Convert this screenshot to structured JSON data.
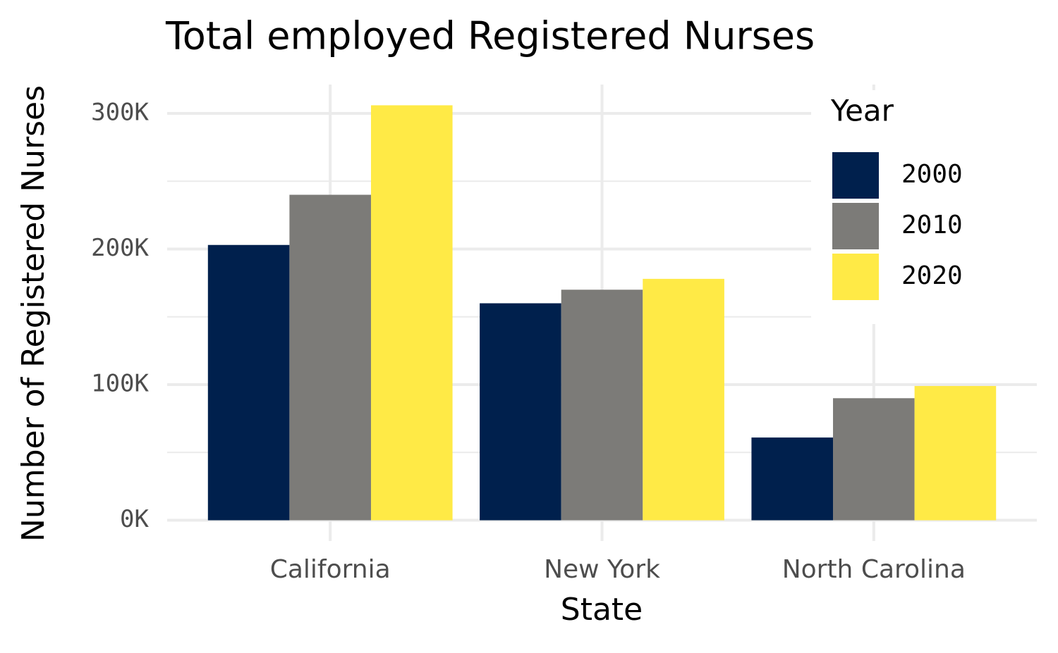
{
  "chart_data": {
    "type": "bar",
    "title": "Total employed Registered Nurses",
    "x_label": "State",
    "y_label": "Number of Registered Nurses",
    "categories": [
      "California",
      "New York",
      "North Carolina"
    ],
    "series": [
      {
        "name": "2000",
        "color": "#00204d",
        "values": [
          203000,
          160000,
          61000
        ]
      },
      {
        "name": "2010",
        "color": "#7c7b78",
        "values": [
          240000,
          170000,
          90000
        ]
      },
      {
        "name": "2020",
        "color": "#ffea46",
        "values": [
          306000,
          178000,
          99000
        ]
      }
    ],
    "legend_title": "Year",
    "legend_position": "top-right",
    "ylim": [
      -15300,
      321300
    ],
    "yticks": [
      {
        "value": 0,
        "label": "0K"
      },
      {
        "value": 100000,
        "label": "100K"
      },
      {
        "value": 200000,
        "label": "200K"
      },
      {
        "value": 300000,
        "label": "300K"
      }
    ],
    "minor_yticks": [
      50000,
      150000,
      250000
    ],
    "grid": true
  }
}
